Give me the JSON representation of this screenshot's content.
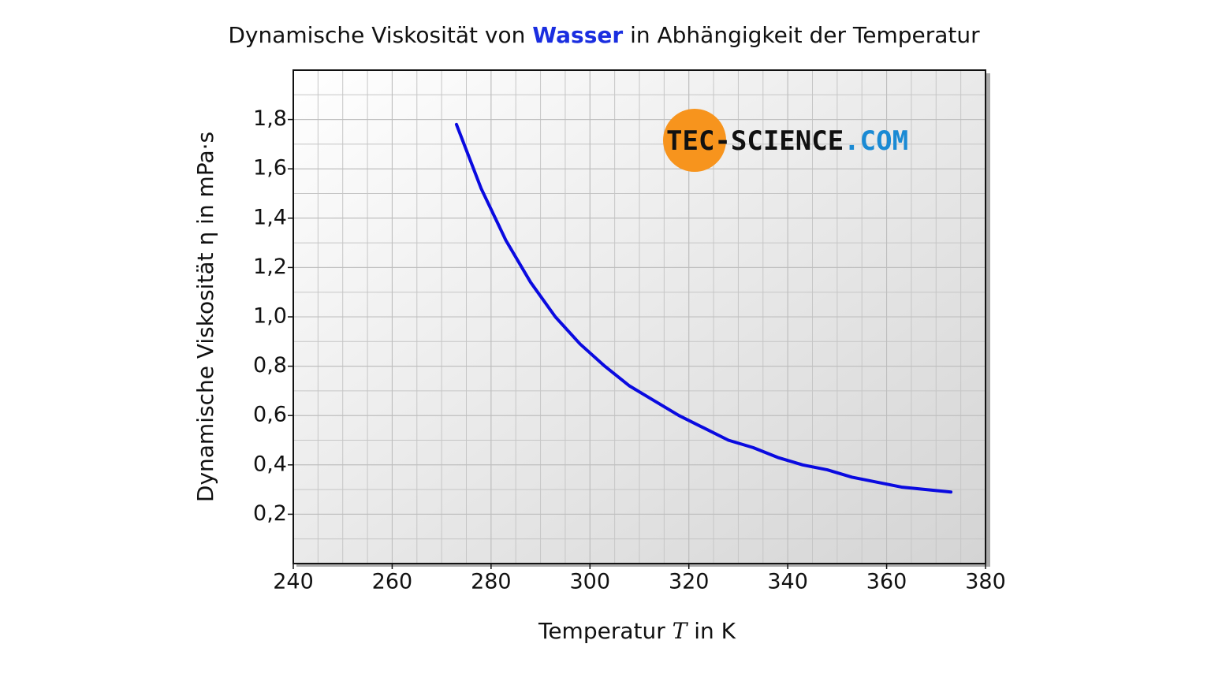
{
  "chart_data": {
    "type": "line",
    "title": {
      "before": "Dynamische Viskosität von ",
      "highlight": "Wasser",
      "after": " in Abhängigkeit der Temperatur"
    },
    "x_label": {
      "before": "Temperatur ",
      "symbol": "T",
      "after": " in K"
    },
    "y_label": "Dynamische Viskosität η in mPa·s",
    "watermark": {
      "main": "TEC-SCIENCE",
      "suffix": ".COM"
    },
    "x": [
      273,
      278,
      283,
      288,
      293,
      298,
      303,
      308,
      313,
      318,
      323,
      328,
      333,
      338,
      343,
      348,
      353,
      358,
      363,
      368,
      373
    ],
    "series": [
      {
        "name": "Wasser",
        "color": "#0a0ae0",
        "values": [
          1.78,
          1.52,
          1.31,
          1.14,
          1.0,
          0.89,
          0.8,
          0.72,
          0.66,
          0.6,
          0.55,
          0.5,
          0.47,
          0.43,
          0.4,
          0.38,
          0.35,
          0.33,
          0.31,
          0.3,
          0.29
        ]
      }
    ],
    "xlim": [
      240,
      380
    ],
    "xticks": [
      240,
      260,
      280,
      300,
      320,
      340,
      360,
      380
    ],
    "ylim": [
      0,
      2
    ],
    "yticks": [
      {
        "value": 0.2,
        "label": "0,2"
      },
      {
        "value": 0.4,
        "label": "0,4"
      },
      {
        "value": 0.6,
        "label": "0,6"
      },
      {
        "value": 0.8,
        "label": "0,8"
      },
      {
        "value": 1.0,
        "label": "1,0"
      },
      {
        "value": 1.2,
        "label": "1,2"
      },
      {
        "value": 1.4,
        "label": "1,4"
      },
      {
        "value": 1.6,
        "label": "1,6"
      },
      {
        "value": 1.8,
        "label": "1,8"
      }
    ],
    "grid": true,
    "minor_grid": true
  }
}
